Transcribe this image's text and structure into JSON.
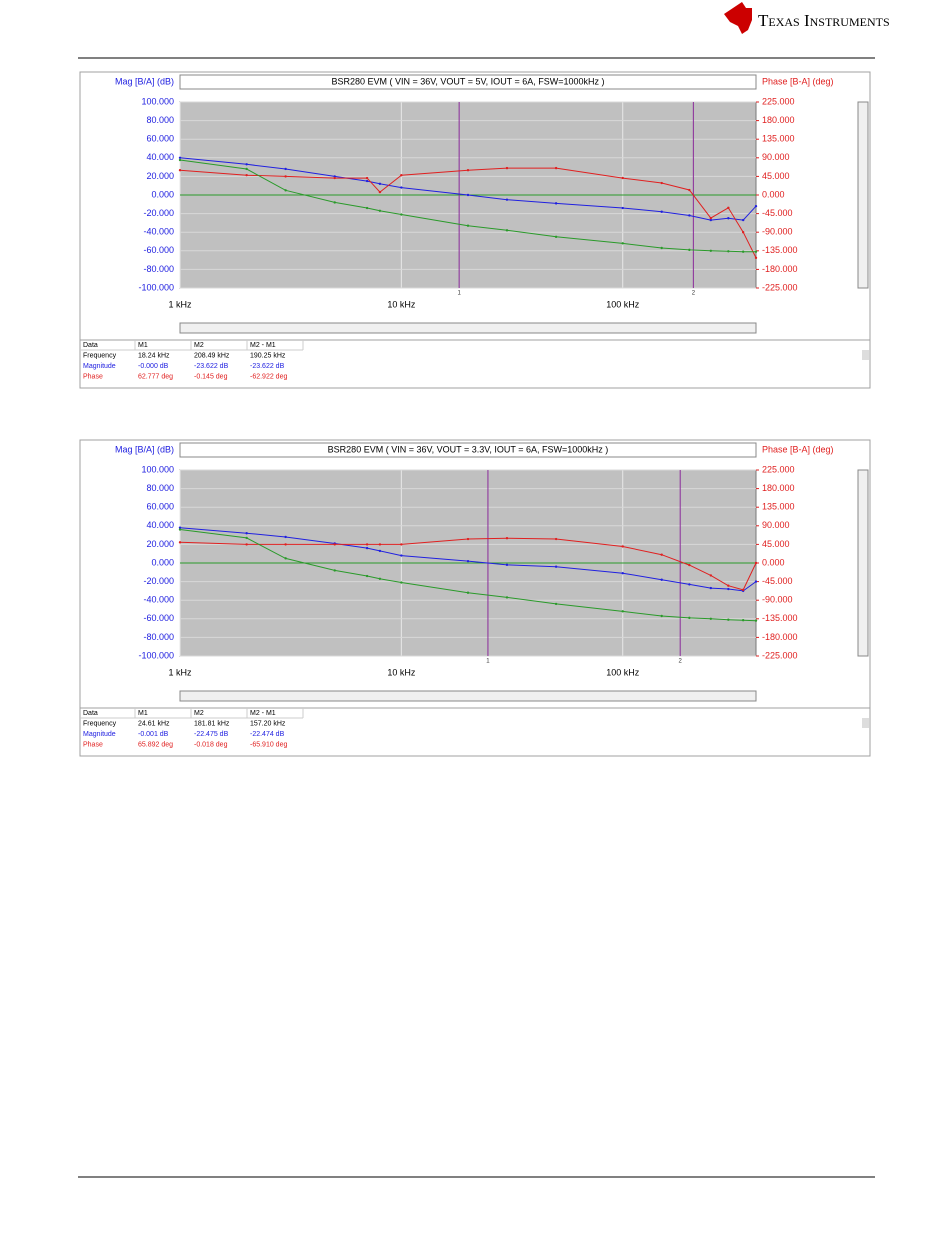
{
  "header": {
    "logo": "Texas Instruments"
  },
  "chart_data": [
    {
      "type": "line",
      "title": "BSR280 EVM ( VIN = 36V, VOUT = 5V, IOUT = 6A, FSW=1000kHz )",
      "ylabel": "Mag [B/A] (dB)",
      "y2label": "Phase [B-A] (deg)",
      "xscale": "log",
      "xlim": [
        1000,
        400000
      ],
      "xticks": [
        {
          "value": 1000,
          "label": "1 kHz"
        },
        {
          "value": 10000,
          "label": "10 kHz"
        },
        {
          "value": 100000,
          "label": "100 kHz"
        }
      ],
      "ylim": [
        -100,
        100
      ],
      "yticks": [
        {
          "value": 100,
          "label": "100.000"
        },
        {
          "value": 80,
          "label": "80.000"
        },
        {
          "value": 60,
          "label": "60.000"
        },
        {
          "value": 40,
          "label": "40.000"
        },
        {
          "value": 20,
          "label": "20.000"
        },
        {
          "value": 0,
          "label": "0.000"
        },
        {
          "value": -20,
          "label": "-20.000"
        },
        {
          "value": -40,
          "label": "-40.000"
        },
        {
          "value": -60,
          "label": "-60.000"
        },
        {
          "value": -80,
          "label": "-80.000"
        },
        {
          "value": -100,
          "label": "-100.000"
        }
      ],
      "y2lim": [
        -225,
        225
      ],
      "y2ticks": [
        {
          "value": 225,
          "label": "225.000"
        },
        {
          "value": 180,
          "label": "180.000"
        },
        {
          "value": 135,
          "label": "135.000"
        },
        {
          "value": 90,
          "label": "90.000"
        },
        {
          "value": 45,
          "label": "45.000"
        },
        {
          "value": 0,
          "label": "0.000"
        },
        {
          "value": -45,
          "label": "-45.000"
        },
        {
          "value": -90,
          "label": "-90.000"
        },
        {
          "value": -135,
          "label": "-135.000"
        },
        {
          "value": -180,
          "label": "-180.000"
        },
        {
          "value": -225,
          "label": "-225.000"
        }
      ],
      "x": [
        1000,
        2000,
        3000,
        5000,
        7000,
        8000,
        10000,
        20000,
        30000,
        50000,
        100000,
        150000,
        200000,
        250000,
        300000,
        350000,
        400000
      ],
      "series": [
        {
          "color": "#2020e0",
          "axis": "y",
          "values": [
            40,
            33,
            28,
            20,
            15,
            12,
            8,
            0,
            -5,
            -9,
            -14,
            -18,
            -22,
            -27,
            -25,
            -27,
            -12
          ]
        },
        {
          "color": "#e02020",
          "axis": "y2",
          "values": [
            60,
            48,
            45,
            41,
            41,
            7,
            48,
            60,
            65,
            65,
            41,
            29,
            12,
            -56,
            -31,
            -90,
            -152
          ]
        },
        {
          "color": "#2a9a2a",
          "axis": "y",
          "values": [
            37.6,
            28,
            5,
            -8,
            -14,
            -17,
            -21,
            -33,
            -38,
            -45,
            -52,
            -57,
            -59,
            -60,
            -60.5,
            -61,
            -61
          ]
        }
      ],
      "markers": [
        {
          "label": "1",
          "x": 18240
        },
        {
          "label": "2",
          "x": 208490
        }
      ],
      "table": {
        "header": [
          "Data",
          "M1",
          "M2",
          "M2 - M1"
        ],
        "rows": [
          [
            "Frequency",
            "18.24 kHz",
            "208.49 kHz",
            "190.25 kHz"
          ],
          [
            "Magnitude",
            "-0.000 dB",
            "-23.622 dB",
            "-23.622 dB"
          ],
          [
            "Phase",
            "62.777 deg",
            "-0.145 deg",
            "-62.922 deg"
          ]
        ]
      }
    },
    {
      "type": "line",
      "title": "BSR280 EVM ( VIN = 36V, VOUT = 3.3V, IOUT = 6A, FSW=1000kHz )",
      "ylabel": "Mag [B/A] (dB)",
      "y2label": "Phase [B-A] (deg)",
      "xscale": "log",
      "xlim": [
        1000,
        400000
      ],
      "xticks": [
        {
          "value": 1000,
          "label": "1 kHz"
        },
        {
          "value": 10000,
          "label": "10 kHz"
        },
        {
          "value": 100000,
          "label": "100 kHz"
        }
      ],
      "ylim": [
        -100,
        100
      ],
      "yticks": [
        {
          "value": 100,
          "label": "100.000"
        },
        {
          "value": 80,
          "label": "80.000"
        },
        {
          "value": 60,
          "label": "60.000"
        },
        {
          "value": 40,
          "label": "40.000"
        },
        {
          "value": 20,
          "label": "20.000"
        },
        {
          "value": 0,
          "label": "0.000"
        },
        {
          "value": -20,
          "label": "-20.000"
        },
        {
          "value": -40,
          "label": "-40.000"
        },
        {
          "value": -60,
          "label": "-60.000"
        },
        {
          "value": -80,
          "label": "-80.000"
        },
        {
          "value": -100,
          "label": "-100.000"
        }
      ],
      "y2lim": [
        -225,
        225
      ],
      "y2ticks": [
        {
          "value": 225,
          "label": "225.000"
        },
        {
          "value": 180,
          "label": "180.000"
        },
        {
          "value": 135,
          "label": "135.000"
        },
        {
          "value": 90,
          "label": "90.000"
        },
        {
          "value": 45,
          "label": "45.000"
        },
        {
          "value": 0,
          "label": "0.000"
        },
        {
          "value": -45,
          "label": "-45.000"
        },
        {
          "value": -90,
          "label": "-90.000"
        },
        {
          "value": -135,
          "label": "-135.000"
        },
        {
          "value": -180,
          "label": "-180.000"
        },
        {
          "value": -225,
          "label": "-225.000"
        }
      ],
      "x": [
        1000,
        2000,
        3000,
        5000,
        7000,
        8000,
        10000,
        20000,
        30000,
        50000,
        100000,
        150000,
        200000,
        250000,
        300000,
        350000,
        400000
      ],
      "series": [
        {
          "color": "#2020e0",
          "axis": "y",
          "values": [
            38,
            32,
            28,
            21,
            16,
            13,
            8,
            2,
            -2,
            -4,
            -11,
            -18,
            -23,
            -27,
            -28,
            -30,
            -20
          ]
        },
        {
          "color": "#e02020",
          "axis": "y2",
          "values": [
            50,
            45,
            45,
            45,
            45,
            45,
            45,
            58,
            60,
            58,
            40,
            20,
            -5,
            -30,
            -55,
            -65,
            0
          ]
        },
        {
          "color": "#2a9a2a",
          "axis": "y",
          "values": [
            36,
            27,
            5,
            -8,
            -14,
            -17,
            -21,
            -32,
            -37,
            -44,
            -52,
            -57,
            -59,
            -60,
            -61,
            -61.5,
            -62
          ]
        }
      ],
      "markers": [
        {
          "label": "1",
          "x": 24610
        },
        {
          "label": "2",
          "x": 181810
        }
      ],
      "table": {
        "header": [
          "Data",
          "M1",
          "M2",
          "M2 - M1"
        ],
        "rows": [
          [
            "Frequency",
            "24.61 kHz",
            "181.81 kHz",
            "157.20 kHz"
          ],
          [
            "Magnitude",
            "-0.001 dB",
            "-22.475 dB",
            "-22.474 dB"
          ],
          [
            "Phase",
            "65.892 deg",
            "-0.018 deg",
            "-65.910 deg"
          ]
        ]
      }
    }
  ]
}
